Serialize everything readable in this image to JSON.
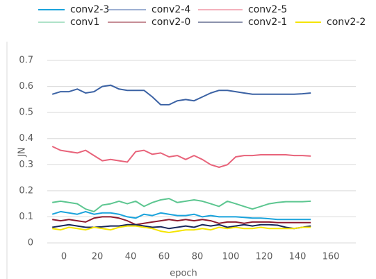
{
  "chart_data": {
    "type": "line",
    "x": [
      -7,
      -2,
      3,
      8,
      13,
      18,
      23,
      28,
      33,
      38,
      43,
      48,
      53,
      58,
      63,
      68,
      73,
      78,
      83,
      88,
      93,
      98,
      103,
      108,
      113,
      118,
      123,
      128,
      133,
      138,
      143,
      148
    ],
    "series": [
      {
        "name": "conv2-3",
        "color": "#1aa3dc",
        "values": [
          0.11,
          0.12,
          0.115,
          0.11,
          0.12,
          0.11,
          0.115,
          0.115,
          0.11,
          0.1,
          0.095,
          0.11,
          0.105,
          0.115,
          0.11,
          0.105,
          0.105,
          0.11,
          0.1,
          0.105,
          0.1,
          0.1,
          0.1,
          0.098,
          0.095,
          0.095,
          0.093,
          0.09,
          0.09,
          0.09,
          0.09,
          0.09
        ]
      },
      {
        "name": "conv2-4",
        "color": "#3b62a4",
        "values": [
          0.57,
          0.58,
          0.58,
          0.59,
          0.575,
          0.58,
          0.6,
          0.605,
          0.59,
          0.585,
          0.585,
          0.585,
          0.56,
          0.53,
          0.53,
          0.545,
          0.55,
          0.545,
          0.56,
          0.575,
          0.585,
          0.585,
          0.58,
          0.575,
          0.57,
          0.57,
          0.57,
          0.57,
          0.57,
          0.57,
          0.572,
          0.575
        ]
      },
      {
        "name": "conv2-5",
        "color": "#e8637a",
        "values": [
          0.37,
          0.355,
          0.35,
          0.345,
          0.355,
          0.335,
          0.315,
          0.32,
          0.315,
          0.31,
          0.35,
          0.355,
          0.34,
          0.345,
          0.33,
          0.335,
          0.32,
          0.335,
          0.32,
          0.3,
          0.29,
          0.3,
          0.33,
          0.335,
          0.335,
          0.338,
          0.338,
          0.338,
          0.338,
          0.335,
          0.335,
          0.333
        ]
      },
      {
        "name": "conv1",
        "color": "#5cc690",
        "values": [
          0.155,
          0.16,
          0.155,
          0.15,
          0.13,
          0.12,
          0.145,
          0.15,
          0.16,
          0.15,
          0.16,
          0.14,
          0.155,
          0.165,
          0.17,
          0.155,
          0.16,
          0.165,
          0.16,
          0.15,
          0.14,
          0.16,
          0.15,
          0.14,
          0.13,
          0.14,
          0.15,
          0.155,
          0.158,
          0.158,
          0.158,
          0.16
        ]
      },
      {
        "name": "conv2-0",
        "color": "#8e1b2e",
        "values": [
          0.09,
          0.085,
          0.09,
          0.085,
          0.08,
          0.095,
          0.1,
          0.1,
          0.095,
          0.085,
          0.07,
          0.075,
          0.08,
          0.085,
          0.09,
          0.085,
          0.09,
          0.085,
          0.09,
          0.085,
          0.075,
          0.08,
          0.08,
          0.075,
          0.08,
          0.08,
          0.08,
          0.078,
          0.078,
          0.078,
          0.078,
          0.078
        ]
      },
      {
        "name": "conv2-1",
        "color": "#17265a",
        "values": [
          0.06,
          0.065,
          0.07,
          0.065,
          0.06,
          0.06,
          0.062,
          0.065,
          0.065,
          0.07,
          0.07,
          0.065,
          0.06,
          0.062,
          0.055,
          0.06,
          0.065,
          0.06,
          0.07,
          0.065,
          0.07,
          0.06,
          0.065,
          0.07,
          0.065,
          0.07,
          0.07,
          0.068,
          0.06,
          0.055,
          0.06,
          0.065
        ]
      },
      {
        "name": "conv2-2",
        "color": "#f4e400",
        "values": [
          0.055,
          0.05,
          0.06,
          0.055,
          0.05,
          0.06,
          0.055,
          0.05,
          0.06,
          0.065,
          0.065,
          0.06,
          0.055,
          0.045,
          0.04,
          0.045,
          0.05,
          0.05,
          0.055,
          0.05,
          0.06,
          0.055,
          0.06,
          0.055,
          0.055,
          0.06,
          0.055,
          0.055,
          0.055,
          0.055,
          0.06,
          0.06
        ]
      }
    ],
    "xlabel": "epoch",
    "ylabel": "JN",
    "xlim": [
      -10,
      175
    ],
    "xticks": [
      0,
      20,
      40,
      60,
      80,
      100,
      120,
      140,
      160
    ],
    "ylim": [
      0,
      0.7
    ],
    "yticks": [
      0,
      0.1,
      0.2,
      0.3,
      0.4,
      0.5,
      0.6,
      0.7
    ],
    "grid": true
  }
}
